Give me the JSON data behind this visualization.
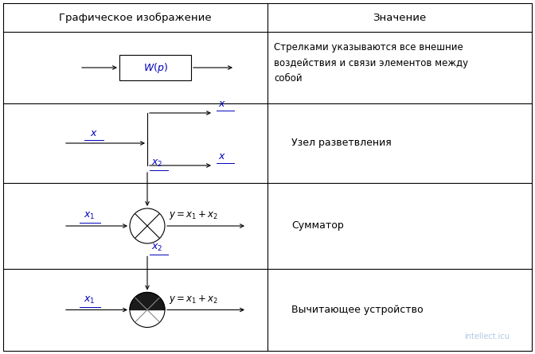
{
  "table_border_color": "#000000",
  "background_color": "#ffffff",
  "header_bg": "#f0f0f0",
  "col1_header": "Графическое изображение",
  "col2_header": "Значение",
  "text_color": "#000000",
  "blue_color": "#0000bb",
  "row2_text": "Узел разветвления",
  "row3_text": "Сумматор",
  "row4_text": "Вычитающее устройство",
  "row1_text": "Стрелками указываются все внешние\nвоздействия и связи элементов между\nсобой"
}
